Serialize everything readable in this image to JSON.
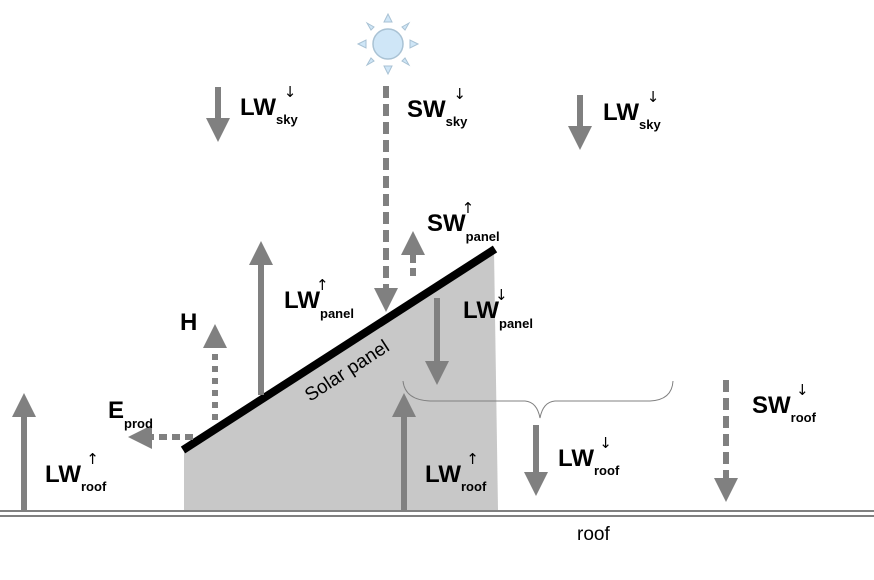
{
  "labels": {
    "lw_sky_left": {
      "main": "LW",
      "sub": "sky",
      "arrow": "↓"
    },
    "sw_sky": {
      "main": "SW",
      "sub": "sky",
      "arrow": "↓"
    },
    "lw_sky_right": {
      "main": "LW",
      "sub": "sky",
      "arrow": "↓"
    },
    "sw_panel": {
      "main": "SW",
      "sub": "panel",
      "arrow": "↑"
    },
    "lw_panel_up": {
      "main": "LW",
      "sub": "panel",
      "arrow": "↑"
    },
    "lw_panel_down": {
      "main": "LW",
      "sub": "panel",
      "arrow": "↓"
    },
    "h": {
      "main": "H"
    },
    "e_prod": {
      "main": "E",
      "sub": "prod"
    },
    "lw_roof_left": {
      "main": "LW",
      "sub": "roof",
      "arrow": "↑"
    },
    "lw_roof_mid": {
      "main": "LW",
      "sub": "roof",
      "arrow": "↑"
    },
    "lw_roof_right": {
      "main": "LW",
      "sub": "roof",
      "arrow": "↓"
    },
    "sw_roof": {
      "main": "SW",
      "sub": "roof",
      "arrow": "↓"
    }
  },
  "panel_label": "Solar panel",
  "ground_label": "roof",
  "colors": {
    "arrow": "#808080",
    "panel_fill": "#c8c8c8",
    "panel_edge": "#000000",
    "sun_fill": "#cfe6f7",
    "sun_rays": "#a9c2d4"
  }
}
